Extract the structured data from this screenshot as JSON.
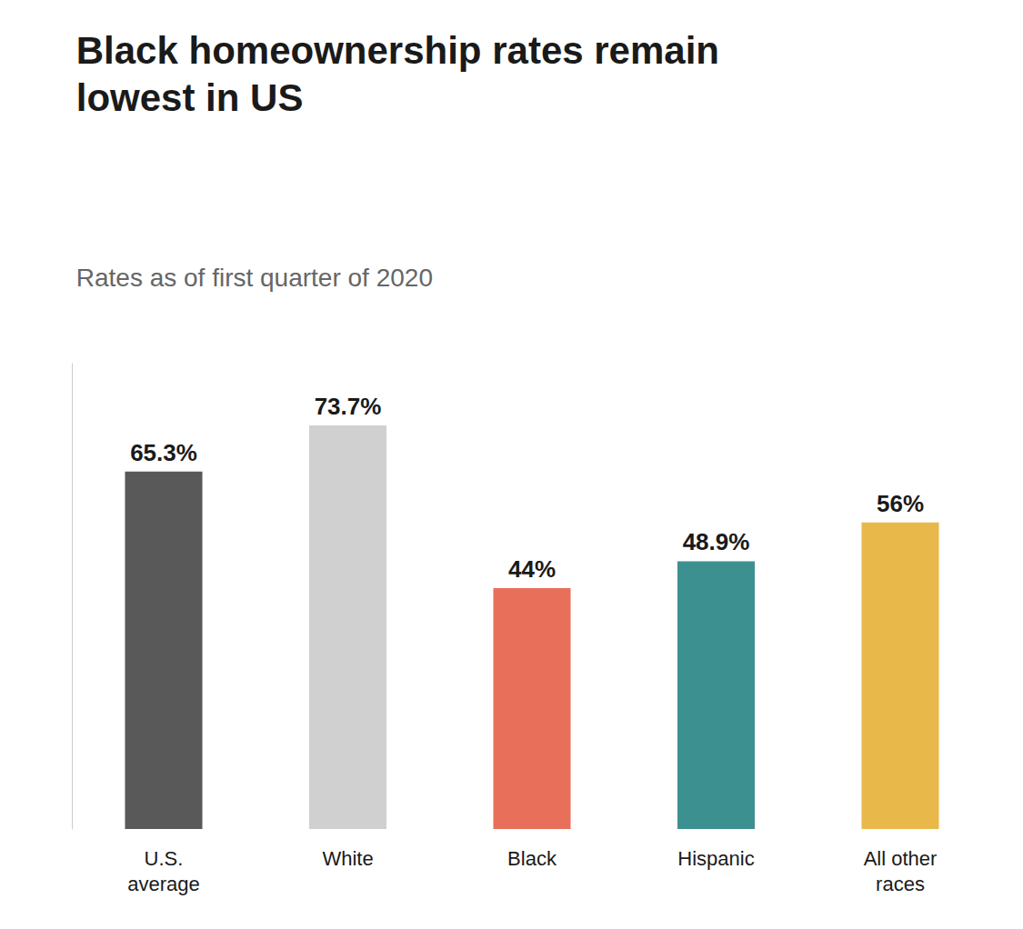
{
  "chart_data": {
    "type": "bar",
    "title": "Black homeownership rates remain\nlowest in US",
    "subtitle": "Rates as of first quarter of 2020",
    "categories": [
      "U.S.\naverage",
      "White",
      "Black",
      "Hispanic",
      "All other\nraces"
    ],
    "values": [
      65.3,
      73.7,
      44.0,
      48.9,
      56.0
    ],
    "value_labels": [
      "65.3%",
      "73.7%",
      "44%",
      "48.9%",
      "56%"
    ],
    "colors": [
      "#595959",
      "#d0d0d0",
      "#e8705a",
      "#3d9090",
      "#e8b84b"
    ],
    "ylim": [
      0,
      85
    ],
    "grid": false,
    "data_labels": true,
    "tick_labels": "x"
  }
}
